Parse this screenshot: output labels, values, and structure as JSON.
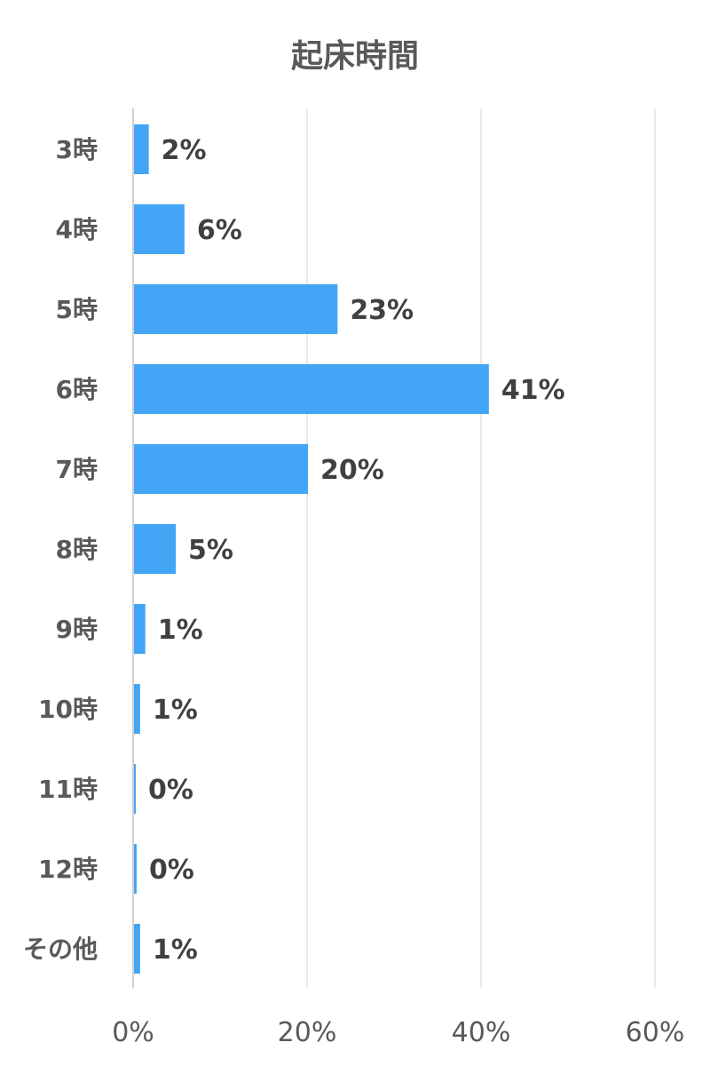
{
  "chart_data": {
    "type": "bar",
    "orientation": "horizontal",
    "title": "起床時間",
    "categories": [
      "3時",
      "4時",
      "5時",
      "6時",
      "7時",
      "8時",
      "9時",
      "10時",
      "11時",
      "12時",
      "その他"
    ],
    "values": [
      2,
      6,
      23,
      41,
      20,
      5,
      1,
      1,
      0,
      0,
      1
    ],
    "value_labels": [
      "2%",
      "6%",
      "23%",
      "41%",
      "20%",
      "5%",
      "1%",
      "1%",
      "0%",
      "0%",
      "1%"
    ],
    "bar_values_estimated": [
      1.7,
      5.8,
      23.4,
      40.8,
      20.0,
      4.8,
      1.3,
      0.7,
      0.2,
      0.3,
      0.7
    ],
    "xlim": [
      0,
      60
    ],
    "xticks": [
      0,
      20,
      40,
      60
    ],
    "xtick_labels": [
      "0%",
      "20%",
      "40%",
      "60%"
    ],
    "grid": true,
    "legend": "none",
    "colors": {
      "bar": "#42a5f5",
      "grid": "#e3e3e3",
      "text": "#595959",
      "label": "#404040"
    }
  }
}
